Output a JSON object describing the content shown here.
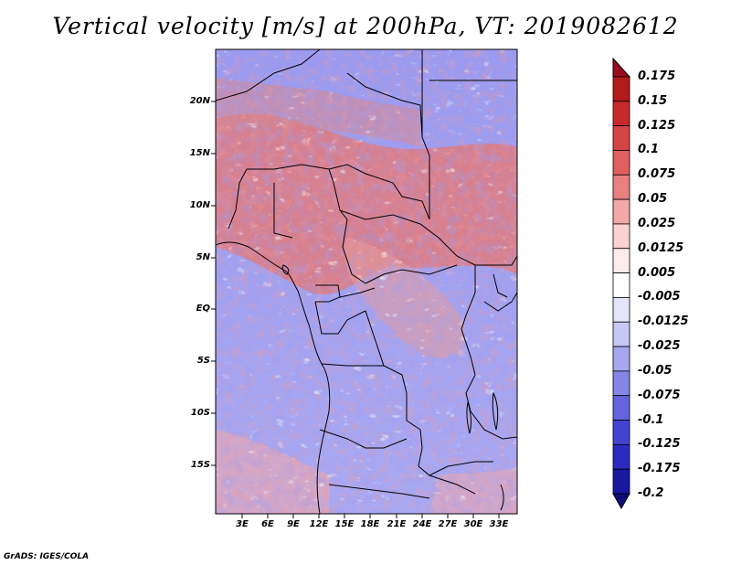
{
  "title": "Vertical velocity [m/s] at 200hPa, VT: 2019082612",
  "footer": "GrADS: IGES/COLA",
  "map": {
    "lat_labels": [
      "20N",
      "15N",
      "10N",
      "5N",
      "EQ",
      "5S",
      "10S",
      "15S"
    ],
    "lon_labels": [
      "3E",
      "6E",
      "9E",
      "12E",
      "15E",
      "18E",
      "21E",
      "24E",
      "27E",
      "30E",
      "33E"
    ]
  },
  "colorbar": {
    "labels": [
      "0.175",
      "0.15",
      "0.125",
      "0.1",
      "0.075",
      "0.05",
      "0.025",
      "0.0125",
      "0.005",
      "-0.005",
      "-0.0125",
      "-0.025",
      "-0.05",
      "-0.075",
      "-0.1",
      "-0.125",
      "-0.175",
      "-0.2"
    ],
    "colors": [
      "#9a0d1e",
      "#b31b1b",
      "#c62a2a",
      "#d64545",
      "#e06060",
      "#e98080",
      "#f3a8a8",
      "#fad2d2",
      "#fcecec",
      "#ffffff",
      "#e4e4fb",
      "#c8c8f7",
      "#a7a7f0",
      "#8686e8",
      "#6464de",
      "#4343d2",
      "#2a2abf",
      "#1818a0",
      "#0e0e7a"
    ]
  }
}
